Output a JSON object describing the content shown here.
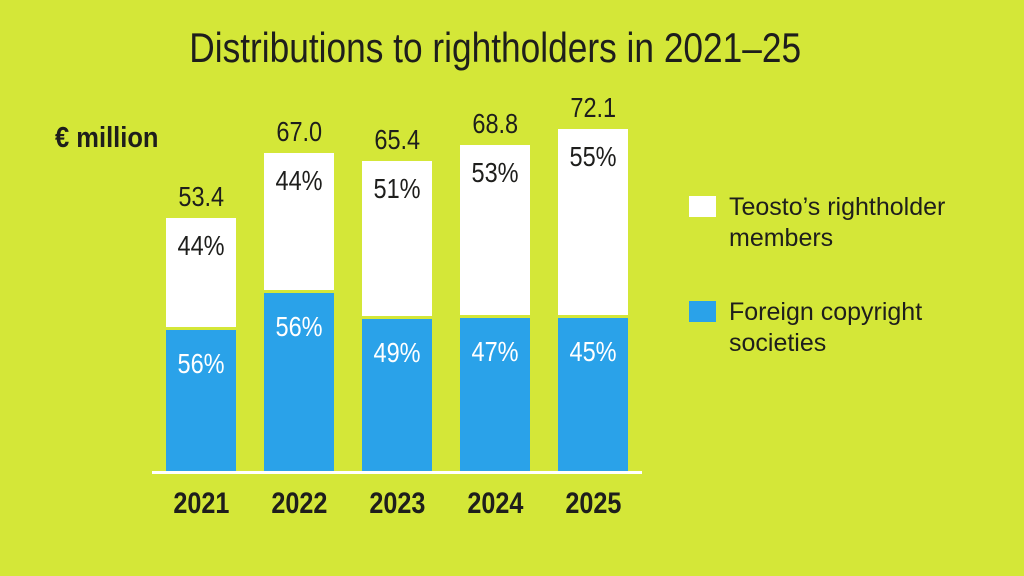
{
  "title": "Distributions to rightholders in 2021–25",
  "unit_label": "€ million",
  "colors": {
    "background": "#d4e738",
    "bar_blue": "#2aa2e9",
    "bar_white": "#ffffff",
    "text_dark": "#1e1e1c",
    "axis_line": "#ffffff"
  },
  "legend": {
    "position": "right",
    "items": [
      {
        "name": "members-swatch",
        "label": "Teosto’s rightholder members",
        "color": "#ffffff"
      },
      {
        "name": "foreign-swatch",
        "label": "Foreign copyright societies",
        "color": "#2aa2e9"
      }
    ]
  },
  "chart_data": {
    "type": "bar",
    "stacked": true,
    "title": "Distributions to rightholders in 2021–25",
    "ylabel": "€ million",
    "grid": false,
    "legend_position": "right",
    "categories": [
      "2021",
      "2022",
      "2023",
      "2024",
      "2025"
    ],
    "totals": [
      53.4,
      67.0,
      65.4,
      68.8,
      72.1
    ],
    "series": [
      {
        "name": "Teosto’s rightholder members",
        "color": "#ffffff",
        "percents": [
          44,
          44,
          51,
          53,
          55
        ]
      },
      {
        "name": "Foreign copyright societies",
        "color": "#2aa2e9",
        "percents": [
          56,
          56,
          49,
          47,
          45
        ]
      }
    ],
    "value_label_format": "one-decimal",
    "segment_label_format": "percent"
  }
}
